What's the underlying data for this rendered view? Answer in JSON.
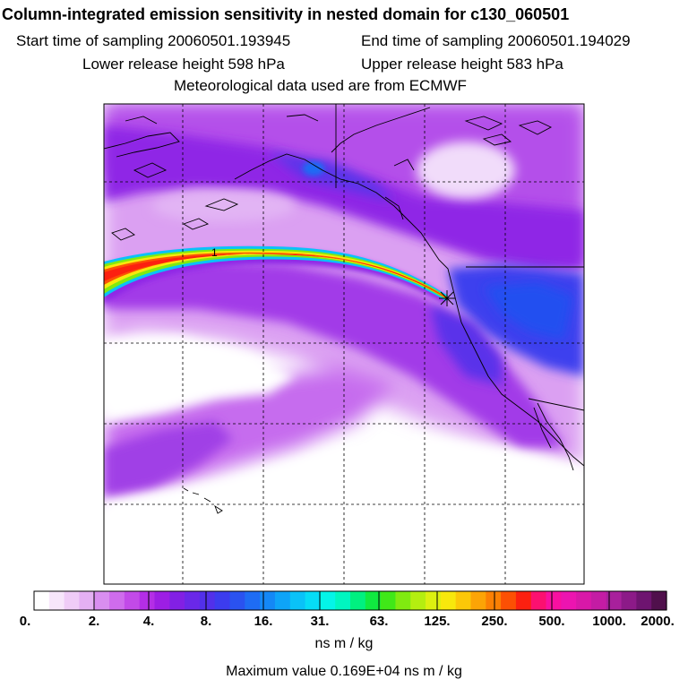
{
  "header": {
    "title": "Column-integrated emission sensitivity in nested domain for c130_060501",
    "start_label": "Start time of sampling 20060501.193945",
    "end_label": "End time of sampling 20060501.194029",
    "lower_label": "Lower release height  598 hPa",
    "upper_label": "Upper release height  583 hPa",
    "met_label": "Meteorological data used are from ECMWF"
  },
  "map": {
    "contour_label": "1"
  },
  "colorbar": {
    "ticks": [
      "0.",
      "2.",
      "4.",
      "8.",
      "16.",
      "31.",
      "63.",
      "125.",
      "250.",
      "500.",
      "1000.",
      "2000."
    ],
    "colors": [
      "#ffffff",
      "#f7e6fb",
      "#efccf7",
      "#e4b0f3",
      "#d98ef0",
      "#cf6cec",
      "#c24ae8",
      "#b42ee6",
      "#9d1ee4",
      "#8220e4",
      "#6a28e8",
      "#5230ea",
      "#3c3cee",
      "#2a52f0",
      "#1e6cf4",
      "#1488f6",
      "#0ea4f8",
      "#0ac2f8",
      "#06dcf6",
      "#04f4e8",
      "#00f6c0",
      "#00f080",
      "#10ea40",
      "#40e818",
      "#80ea10",
      "#b4ee10",
      "#dcf010",
      "#f8e80c",
      "#fcc808",
      "#fca406",
      "#fc8004",
      "#fc5004",
      "#fc2010",
      "#fc1070",
      "#f810a0",
      "#ec14b0",
      "#d818a8",
      "#c41ca4",
      "#a8209c",
      "#8c1a88",
      "#6e1470",
      "#50104c"
    ],
    "units": "ns m / kg",
    "max_value": "Maximum value  0.169E+04 ns m / kg"
  }
}
